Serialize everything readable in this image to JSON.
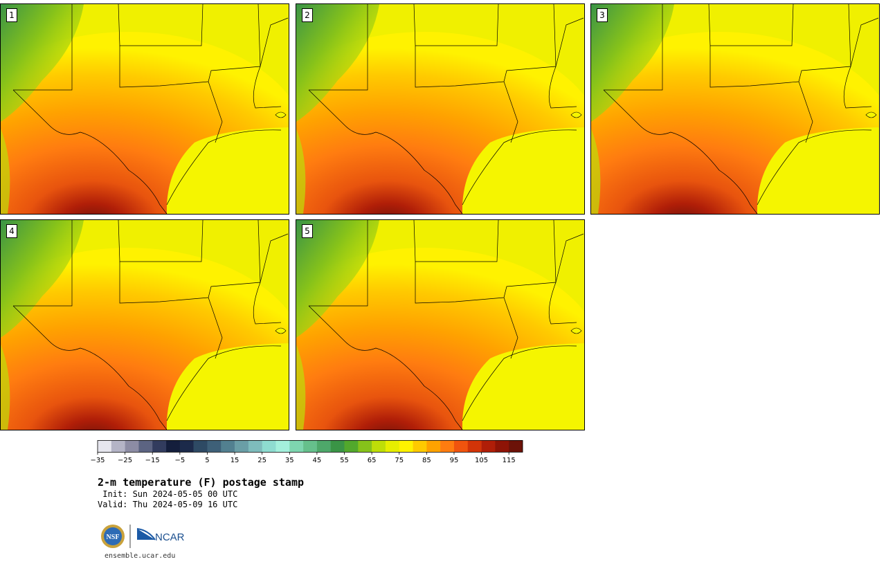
{
  "panels": [
    {
      "label": "1"
    },
    {
      "label": "2"
    },
    {
      "label": "3"
    },
    {
      "label": "4"
    },
    {
      "label": "5"
    }
  ],
  "colorbar": {
    "ticks": [
      "−35",
      "−25",
      "−15",
      "−5",
      "5",
      "15",
      "25",
      "35",
      "45",
      "55",
      "65",
      "75",
      "85",
      "95",
      "105",
      "115"
    ],
    "colors": [
      "#e6e6ee",
      "#b4b4c6",
      "#8c8ca4",
      "#5c6482",
      "#323c5e",
      "#141e3c",
      "#1c2a4a",
      "#2e4a64",
      "#3e6078",
      "#528090",
      "#6a9ea6",
      "#7ebcbc",
      "#8edcd0",
      "#a4f0dc",
      "#7ed6b0",
      "#66c08c",
      "#4ea86a",
      "#3a9446",
      "#52a82c",
      "#86c21a",
      "#bede08",
      "#e6ee00",
      "#fff200",
      "#ffca00",
      "#ffa200",
      "#ff7c10",
      "#f0540e",
      "#d23408",
      "#b01e08",
      "#8e1406",
      "#6c1208"
    ]
  },
  "title": "2-m temperature (F) postage stamp",
  "init": " Init: Sun 2024-05-05 00 UTC",
  "valid": "Valid: Thu 2024-05-09 16 UTC",
  "logo": {
    "left": "NSF",
    "right": "NCAR"
  },
  "url": "ensemble.ucar.edu"
}
